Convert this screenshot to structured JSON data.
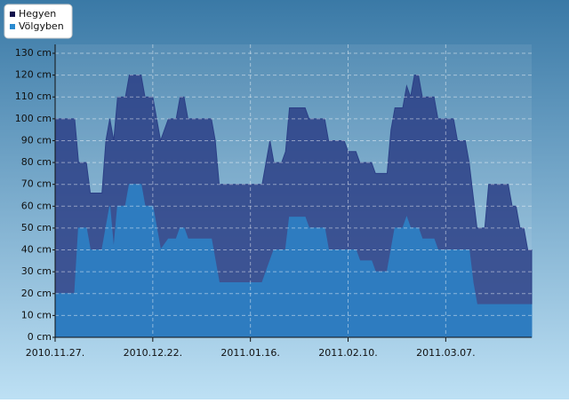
{
  "chart_data": {
    "type": "area",
    "x": [
      "2010-11-27",
      "2010-12-02",
      "2010-12-03",
      "2010-12-05",
      "2010-12-06",
      "2010-12-09",
      "2010-12-10",
      "2010-12-11",
      "2010-12-12",
      "2010-12-13",
      "2010-12-15",
      "2010-12-16",
      "2010-12-19",
      "2010-12-20",
      "2010-12-22",
      "2010-12-24",
      "2010-12-26",
      "2010-12-28",
      "2010-12-29",
      "2010-12-30",
      "2010-12-31",
      "2011-01-06",
      "2011-01-07",
      "2011-01-08",
      "2011-01-19",
      "2011-01-21",
      "2011-01-22",
      "2011-01-24",
      "2011-01-25",
      "2011-01-26",
      "2011-01-30",
      "2011-01-31",
      "2011-02-04",
      "2011-02-05",
      "2011-02-09",
      "2011-02-10",
      "2011-02-12",
      "2011-02-13",
      "2011-02-16",
      "2011-02-17",
      "2011-02-20",
      "2011-02-21",
      "2011-02-22",
      "2011-02-24",
      "2011-02-25",
      "2011-02-26",
      "2011-02-27",
      "2011-02-28",
      "2011-03-01",
      "2011-03-04",
      "2011-03-05",
      "2011-03-09",
      "2011-03-10",
      "2011-03-12",
      "2011-03-13",
      "2011-03-14",
      "2011-03-15",
      "2011-03-17",
      "2011-03-18",
      "2011-03-23",
      "2011-03-24",
      "2011-03-25",
      "2011-03-26",
      "2011-03-27",
      "2011-03-28",
      "2011-03-29"
    ],
    "series": [
      {
        "name": "Hegyen",
        "color": "#2b3f86",
        "legend_color": "#10104a",
        "values": [
          100,
          100,
          80,
          80,
          66,
          66,
          90,
          100,
          90,
          110,
          110,
          120,
          120,
          110,
          110,
          90,
          100,
          100,
          110,
          110,
          100,
          100,
          90,
          70,
          70,
          90,
          80,
          80,
          85,
          105,
          105,
          100,
          100,
          90,
          90,
          85,
          85,
          80,
          80,
          75,
          75,
          95,
          105,
          105,
          115,
          110,
          120,
          120,
          110,
          110,
          100,
          100,
          90,
          90,
          80,
          65,
          50,
          50,
          70,
          70,
          60,
          60,
          50,
          50,
          40,
          40
        ]
      },
      {
        "name": "Völgyben",
        "color": "#2e7cc0",
        "legend_color": "#2a8ad0",
        "values": [
          20,
          20,
          50,
          50,
          40,
          40,
          50,
          60,
          40,
          60,
          60,
          70,
          70,
          60,
          60,
          40,
          45,
          45,
          50,
          50,
          45,
          45,
          35,
          25,
          25,
          35,
          40,
          40,
          40,
          55,
          55,
          50,
          50,
          40,
          40,
          40,
          40,
          35,
          35,
          30,
          30,
          40,
          50,
          50,
          55,
          50,
          50,
          50,
          45,
          45,
          40,
          40,
          40,
          40,
          40,
          25,
          15,
          15,
          15,
          15,
          15,
          15,
          15,
          15,
          15,
          15
        ]
      }
    ],
    "xlim": [
      "2010-11-27",
      "2011-03-29"
    ],
    "xticks": [
      {
        "value": "2010-11-27",
        "label": "2010.11.27."
      },
      {
        "value": "2010-12-22",
        "label": "2010.12.22."
      },
      {
        "value": "2011-01-16",
        "label": "2011.01.16."
      },
      {
        "value": "2011-02-10",
        "label": "2011.02.10."
      },
      {
        "value": "2011-03-07",
        "label": "2011.03.07."
      }
    ],
    "ylim": [
      0,
      130
    ],
    "yticks": [
      {
        "value": 0,
        "label": "0 cm"
      },
      {
        "value": 10,
        "label": "10 cm"
      },
      {
        "value": 20,
        "label": "20 cm"
      },
      {
        "value": 30,
        "label": "30 cm"
      },
      {
        "value": 40,
        "label": "40 cm"
      },
      {
        "value": 50,
        "label": "50 cm"
      },
      {
        "value": 60,
        "label": "60 cm"
      },
      {
        "value": 70,
        "label": "70 cm"
      },
      {
        "value": 80,
        "label": "80 cm"
      },
      {
        "value": 90,
        "label": "90 cm"
      },
      {
        "value": 100,
        "label": "100 cm"
      },
      {
        "value": 110,
        "label": "110 cm"
      },
      {
        "value": 120,
        "label": "120 cm"
      },
      {
        "value": 130,
        "label": "130 cm"
      }
    ],
    "grid": true,
    "legend": "top-left"
  }
}
